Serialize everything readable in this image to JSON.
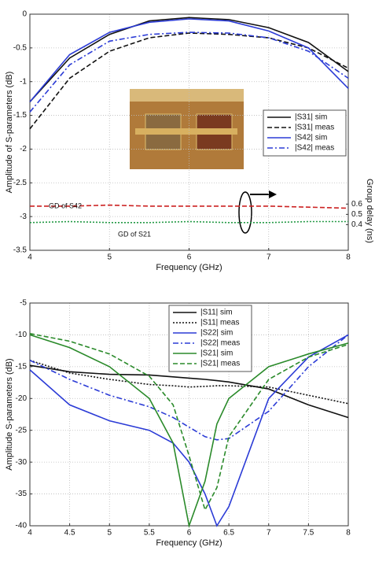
{
  "chart_data": [
    {
      "type": "line",
      "x_label": "Frequency (GHz)",
      "y_label": "Amplitude of S-parameters (dB)",
      "y2_label": "Group delay (ns)",
      "x": [
        4,
        4.5,
        5,
        5.5,
        6,
        6.5,
        7,
        7.5,
        8
      ],
      "xlim": [
        4,
        8
      ],
      "xticks": [
        4,
        5,
        6,
        7,
        8
      ],
      "ylim": [
        -3.5,
        0
      ],
      "yticks": [
        0,
        -0.5,
        -1,
        -1.5,
        -2,
        -2.5,
        -3,
        -3.5
      ],
      "y2lim": [
        0.15,
        2.45
      ],
      "y2ticks": [
        0.4,
        0.5,
        0.6
      ],
      "grid": true,
      "series": [
        {
          "name": "|S31| sim",
          "color": "#111111",
          "dash": "solid",
          "values": [
            -1.3,
            -0.65,
            -0.3,
            -0.1,
            -0.05,
            -0.08,
            -0.2,
            -0.42,
            -0.85
          ]
        },
        {
          "name": "|S31| meas",
          "color": "#111111",
          "dash": "dashed",
          "values": [
            -1.7,
            -0.95,
            -0.55,
            -0.35,
            -0.28,
            -0.3,
            -0.35,
            -0.5,
            -0.8
          ]
        },
        {
          "name": "|S42| sim",
          "color": "#2b3bd6",
          "dash": "solid",
          "values": [
            -1.3,
            -0.6,
            -0.27,
            -0.12,
            -0.07,
            -0.1,
            -0.25,
            -0.5,
            -1.1
          ]
        },
        {
          "name": "|S42| meas",
          "color": "#2b3bd6",
          "dash": "dashdot",
          "values": [
            -1.45,
            -0.75,
            -0.4,
            -0.3,
            -0.27,
            -0.28,
            -0.35,
            -0.55,
            -0.95
          ]
        }
      ],
      "delay_series": [
        {
          "name": "GD of S42",
          "color": "#cc2222",
          "dash": "dashed",
          "axis": "y2",
          "values": [
            0.58,
            0.58,
            0.59,
            0.58,
            0.58,
            0.58,
            0.58,
            0.57,
            0.56
          ]
        },
        {
          "name": "GD of S21",
          "color": "#229944",
          "dash": "dotted",
          "axis": "y2",
          "values": [
            0.42,
            0.43,
            0.42,
            0.42,
            0.43,
            0.42,
            0.42,
            0.43,
            0.43
          ]
        }
      ]
    },
    {
      "type": "line",
      "x_label": "Frequency (GHz)",
      "y_label": "Amplitude S-parameters (dB)",
      "x": [
        4,
        4.5,
        5,
        5.5,
        5.8,
        6,
        6.2,
        6.35,
        6.5,
        7,
        7.5,
        8
      ],
      "xlim": [
        4,
        8
      ],
      "xticks": [
        4,
        4.5,
        5,
        5.5,
        6,
        6.5,
        7,
        7.5,
        8
      ],
      "ylim": [
        -40,
        -5
      ],
      "yticks": [
        -5,
        -10,
        -15,
        -20,
        -25,
        -30,
        -35,
        -40
      ],
      "grid": true,
      "series": [
        {
          "name": "|S11| sim",
          "color": "#111111",
          "dash": "solid",
          "values": [
            -14.8,
            -15.8,
            -16.2,
            -16.3,
            -16.6,
            -16.8,
            -17,
            -17.2,
            -17.4,
            -18.5,
            -21,
            -23
          ]
        },
        {
          "name": "|S11| meas",
          "color": "#111111",
          "dash": "dotted",
          "values": [
            -14,
            -16,
            -17,
            -17.8,
            -18,
            -18.2,
            -18.1,
            -18,
            -18,
            -18.2,
            -19.5,
            -20.8
          ]
        },
        {
          "name": "|S22| sim",
          "color": "#2b3bd6",
          "dash": "solid",
          "values": [
            -15.5,
            -21,
            -23.5,
            -25,
            -27,
            -30,
            -35,
            -40,
            -37,
            -20,
            -13.5,
            -10
          ]
        },
        {
          "name": "|S22| meas",
          "color": "#2b3bd6",
          "dash": "dashdot",
          "values": [
            -14,
            -17,
            -19.5,
            -21.3,
            -23,
            -24.5,
            -26,
            -26.5,
            -26.3,
            -22,
            -15,
            -10
          ]
        },
        {
          "name": "|S21| sim",
          "color": "#2a8a2a",
          "dash": "solid",
          "values": [
            -10,
            -12,
            -15,
            -20,
            -27,
            -40,
            -33,
            -24,
            -20,
            -15,
            -13,
            -11.3
          ]
        },
        {
          "name": "|S21| meas",
          "color": "#2a8a2a",
          "dash": "dashed",
          "values": [
            -9.8,
            -11,
            -13,
            -16.5,
            -21,
            -29,
            -37.5,
            -34,
            -26,
            -17,
            -13.5,
            -11.5
          ]
        }
      ]
    }
  ]
}
